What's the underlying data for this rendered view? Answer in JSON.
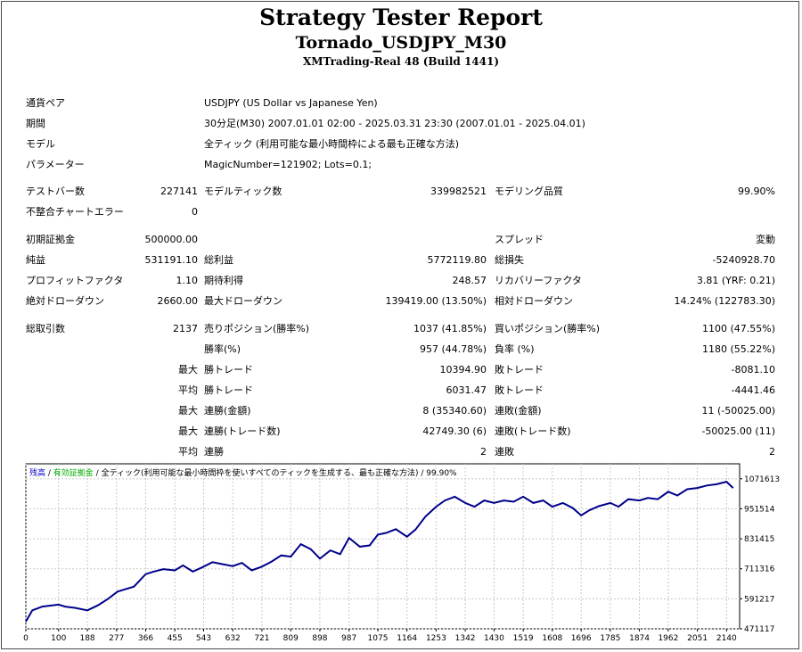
{
  "report": {
    "title": "Strategy Tester Report",
    "subtitle": "Tornado_USDJPY_M30",
    "build": "XMTrading-Real 48 (Build 1441)"
  },
  "info": {
    "symbol_label": "通貨ペア",
    "symbol_value": "USDJPY (US Dollar vs Japanese Yen)",
    "period_label": "期間",
    "period_value": "30分足(M30) 2007.01.01 02:00 - 2025.03.31 23:30 (2007.01.01 - 2025.04.01)",
    "model_label": "モデル",
    "model_value": "全ティック (利用可能な最小時間枠による最も正確な方法)",
    "params_label": "パラメーター",
    "params_value": "MagicNumber=121902; Lots=0.1;"
  },
  "stats": {
    "bars_label": "テストバー数",
    "bars_value": "227141",
    "ticks_label": "モデルティック数",
    "ticks_value": "339982521",
    "quality_label": "モデリング品質",
    "quality_value": "99.90%",
    "mismatch_label": "不整合チャートエラー",
    "mismatch_value": "0",
    "deposit_label": "初期証拠金",
    "deposit_value": "500000.00",
    "spread_label": "スプレッド",
    "spread_value": "変動",
    "net_label": "純益",
    "net_value": "531191.10",
    "gross_profit_label": "総利益",
    "gross_profit_value": "5772119.80",
    "gross_loss_label": "総損失",
    "gross_loss_value": "-5240928.70",
    "pf_label": "プロフィットファクタ",
    "pf_value": "1.10",
    "expected_label": "期待利得",
    "expected_value": "248.57",
    "recovery_label": "リカバリーファクタ",
    "recovery_value": "3.81 (YRF: 0.21)",
    "abs_dd_label": "絶対ドローダウン",
    "abs_dd_value": "2660.00",
    "max_dd_label": "最大ドローダウン",
    "max_dd_value": "139419.00 (13.50%)",
    "rel_dd_label": "相対ドローダウン",
    "rel_dd_value": "14.24% (122783.30)",
    "trades_label": "総取引数",
    "trades_value": "2137",
    "short_label": "売りポジション(勝率%)",
    "short_value": "1037 (41.85%)",
    "long_label": "買いポジション(勝率%)",
    "long_value": "1100 (47.55%)",
    "win_pct_label": "勝率(%)",
    "win_pct_value": "957 (44.78%)",
    "loss_pct_label": "負率 (%)",
    "loss_pct_value": "1180 (55.22%)",
    "max_prefix": "最大",
    "avg_prefix": "平均",
    "largest_win_label": "勝トレード",
    "largest_win_value": "10394.90",
    "largest_loss_label": "敗トレード",
    "largest_loss_value": "-8081.10",
    "avg_win_label": "勝トレード",
    "avg_win_value": "6031.47",
    "avg_loss_label": "敗トレード",
    "avg_loss_value": "-4441.46",
    "max_cons_wins_label": "連勝(金額)",
    "max_cons_wins_value": "8 (35340.60)",
    "max_cons_losses_label": "連敗(金額)",
    "max_cons_losses_value": "11 (-50025.00)",
    "max_cons_profit_label": "連勝(トレード数)",
    "max_cons_profit_value": "42749.30 (6)",
    "max_cons_loss_label": "連敗(トレード数)",
    "max_cons_loss_value": "-50025.00 (11)",
    "avg_cons_wins_label": "連勝",
    "avg_cons_wins_value": "2",
    "avg_cons_losses_label": "連敗",
    "avg_cons_losses_value": "2"
  },
  "chart_data": {
    "type": "line",
    "legend": {
      "balance": "残高",
      "sep1": " / ",
      "equity": "有効証拠金",
      "sep2": " / ",
      "model": "全ティック(利用可能な最小時間枠を使いすべてのティックを生成する、最も正確な方法)",
      "sep3": " / ",
      "quality": "99.90%"
    },
    "legend_colors": {
      "balance": "#0000cc",
      "equity": "#00aa00",
      "text": "#000000"
    },
    "line_color": "#00008b",
    "grid": true,
    "x_ticks": [
      0,
      100,
      188,
      277,
      366,
      455,
      543,
      632,
      721,
      809,
      898,
      987,
      1075,
      1164,
      1253,
      1342,
      1430,
      1519,
      1608,
      1696,
      1785,
      1874,
      1962,
      2051,
      2140
    ],
    "y_ticks": [
      1071613,
      951514,
      831415,
      711316,
      591217,
      471117
    ],
    "xlim": [
      0,
      2180
    ],
    "ylim": [
      471117,
      1131662
    ],
    "series": [
      {
        "x": [
          0,
          20,
          50,
          80,
          100,
          120,
          150,
          188,
          220,
          250,
          280,
          300,
          330,
          366,
          390,
          420,
          455,
          480,
          510,
          543,
          570,
          600,
          632,
          660,
          690,
          721,
          750,
          780,
          809,
          840,
          870,
          898,
          930,
          960,
          987,
          1020,
          1050,
          1075,
          1100,
          1130,
          1164,
          1190,
          1220,
          1253,
          1280,
          1310,
          1342,
          1370,
          1400,
          1430,
          1460,
          1490,
          1519,
          1550,
          1580,
          1608,
          1640,
          1670,
          1696,
          1720,
          1750,
          1785,
          1810,
          1840,
          1874,
          1900,
          1930,
          1962,
          1990,
          2020,
          2051,
          2080,
          2110,
          2140,
          2160
        ],
        "values": [
          500000,
          545000,
          560000,
          565000,
          568000,
          560000,
          555000,
          545000,
          565000,
          590000,
          620000,
          628000,
          640000,
          690000,
          700000,
          710000,
          705000,
          725000,
          700000,
          720000,
          738000,
          730000,
          722000,
          735000,
          705000,
          720000,
          740000,
          765000,
          760000,
          810000,
          790000,
          752000,
          785000,
          770000,
          835000,
          800000,
          805000,
          848000,
          855000,
          870000,
          840000,
          868000,
          920000,
          960000,
          985000,
          1000000,
          975000,
          960000,
          985000,
          975000,
          985000,
          980000,
          1000000,
          975000,
          985000,
          960000,
          975000,
          955000,
          925000,
          945000,
          962000,
          975000,
          960000,
          990000,
          985000,
          995000,
          990000,
          1020000,
          1005000,
          1030000,
          1035000,
          1045000,
          1050000,
          1060000,
          1035000
        ]
      }
    ]
  }
}
